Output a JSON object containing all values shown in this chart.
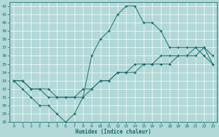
{
  "xlabel": "Humidex (Indice chaleur)",
  "xlim": [
    -0.5,
    23.5
  ],
  "ylim": [
    28,
    42.5
  ],
  "xticks": [
    0,
    1,
    2,
    3,
    4,
    5,
    6,
    7,
    8,
    9,
    10,
    11,
    12,
    13,
    14,
    15,
    16,
    17,
    18,
    19,
    20,
    21,
    22,
    23
  ],
  "yticks": [
    28,
    29,
    30,
    31,
    32,
    33,
    34,
    35,
    36,
    37,
    38,
    39,
    40,
    41,
    42
  ],
  "background_color": "#b2d8d8",
  "grid_color": "#ffffff",
  "line_color": "#1a6b6b",
  "line1_x": [
    0,
    1,
    2,
    3,
    4,
    5,
    6,
    7,
    8,
    9,
    10,
    11,
    12,
    13,
    14,
    15,
    16,
    17,
    18,
    19,
    20,
    21,
    22,
    23
  ],
  "line1_y": [
    33,
    32,
    31,
    30,
    30,
    29,
    28,
    29,
    31,
    36,
    38,
    39,
    41,
    42,
    42,
    40,
    40,
    39,
    37,
    37,
    37,
    37,
    36,
    35
  ],
  "line2_x": [
    0,
    1,
    2,
    3,
    4,
    5,
    6,
    7,
    8,
    9,
    10,
    11,
    12,
    13,
    14,
    15,
    16,
    17,
    18,
    19,
    20,
    21,
    22,
    23
  ],
  "line2_y": [
    33,
    33,
    32,
    32,
    32,
    31,
    31,
    31,
    32,
    32,
    33,
    33,
    34,
    34,
    35,
    35,
    35,
    36,
    36,
    36,
    36,
    37,
    37,
    36
  ],
  "line3_x": [
    0,
    1,
    2,
    3,
    4,
    5,
    6,
    7,
    8,
    9,
    10,
    11,
    12,
    13,
    14,
    15,
    16,
    17,
    18,
    19,
    20,
    21,
    22,
    23
  ],
  "line3_y": [
    33,
    33,
    32,
    32,
    31,
    31,
    31,
    31,
    31,
    32,
    33,
    33,
    34,
    34,
    34,
    35,
    35,
    35,
    35,
    36,
    36,
    36,
    37,
    35
  ]
}
